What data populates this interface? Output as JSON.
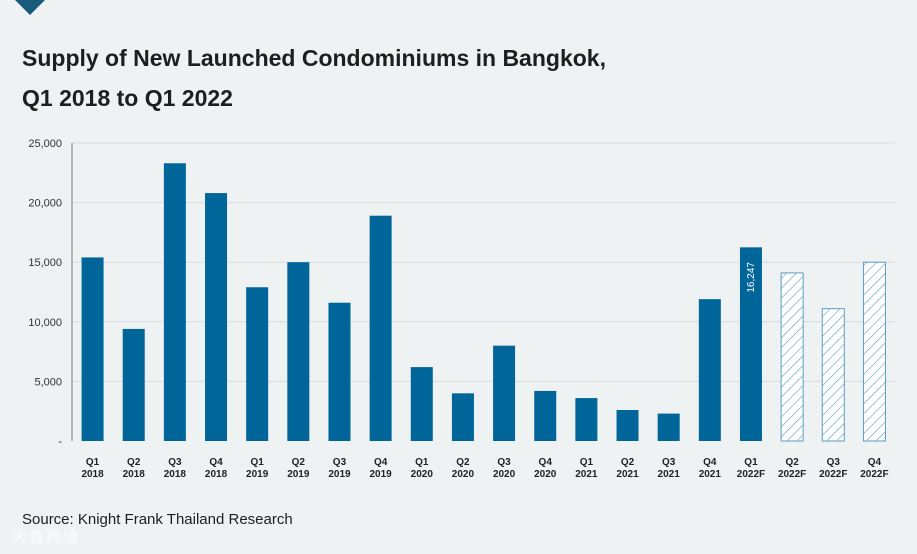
{
  "title_line1": "Supply of New Launched Condominiums in Bangkok,",
  "title_line2": "Q1 2018 to Q1 2022",
  "source": "Source: Knight Frank Thailand Research",
  "watermark": "大数跨境",
  "colors": {
    "bar": "#006699",
    "forecast_stroke": "#5b9bc4",
    "grid": "#d6dcdc",
    "axis": "#7a7a7a"
  },
  "chart_data": {
    "type": "bar",
    "title": "Supply of New Launched Condominiums in Bangkok, Q1 2018 to Q1 2022",
    "xlabel": "",
    "ylabel": "",
    "ylim": [
      0,
      25000
    ],
    "yticks": [
      "-",
      "5,000",
      "10,000",
      "15,000",
      "20,000",
      "25,000"
    ],
    "grid": true,
    "categories": [
      [
        "Q1",
        "2018"
      ],
      [
        "Q2",
        "2018"
      ],
      [
        "Q3",
        "2018"
      ],
      [
        "Q4",
        "2018"
      ],
      [
        "Q1",
        "2019"
      ],
      [
        "Q2",
        "2019"
      ],
      [
        "Q3",
        "2019"
      ],
      [
        "Q4",
        "2019"
      ],
      [
        "Q1",
        "2020"
      ],
      [
        "Q2",
        "2020"
      ],
      [
        "Q3",
        "2020"
      ],
      [
        "Q4",
        "2020"
      ],
      [
        "Q1",
        "2021"
      ],
      [
        "Q2",
        "2021"
      ],
      [
        "Q3",
        "2021"
      ],
      [
        "Q4",
        "2021"
      ],
      [
        "Q1",
        "2022F"
      ],
      [
        "Q2",
        "2022F"
      ],
      [
        "Q3",
        "2022F"
      ],
      [
        "Q4",
        "2022F"
      ]
    ],
    "values": [
      15400,
      9400,
      23300,
      20800,
      12900,
      15000,
      11600,
      18900,
      6200,
      4000,
      8000,
      4200,
      3600,
      2600,
      2300,
      11900,
      16247,
      14100,
      11100,
      15000
    ],
    "forecast": [
      false,
      false,
      false,
      false,
      false,
      false,
      false,
      false,
      false,
      false,
      false,
      false,
      false,
      false,
      false,
      false,
      false,
      true,
      true,
      true
    ],
    "data_labels": [
      {
        "index": 16,
        "text": "16,247"
      }
    ]
  }
}
